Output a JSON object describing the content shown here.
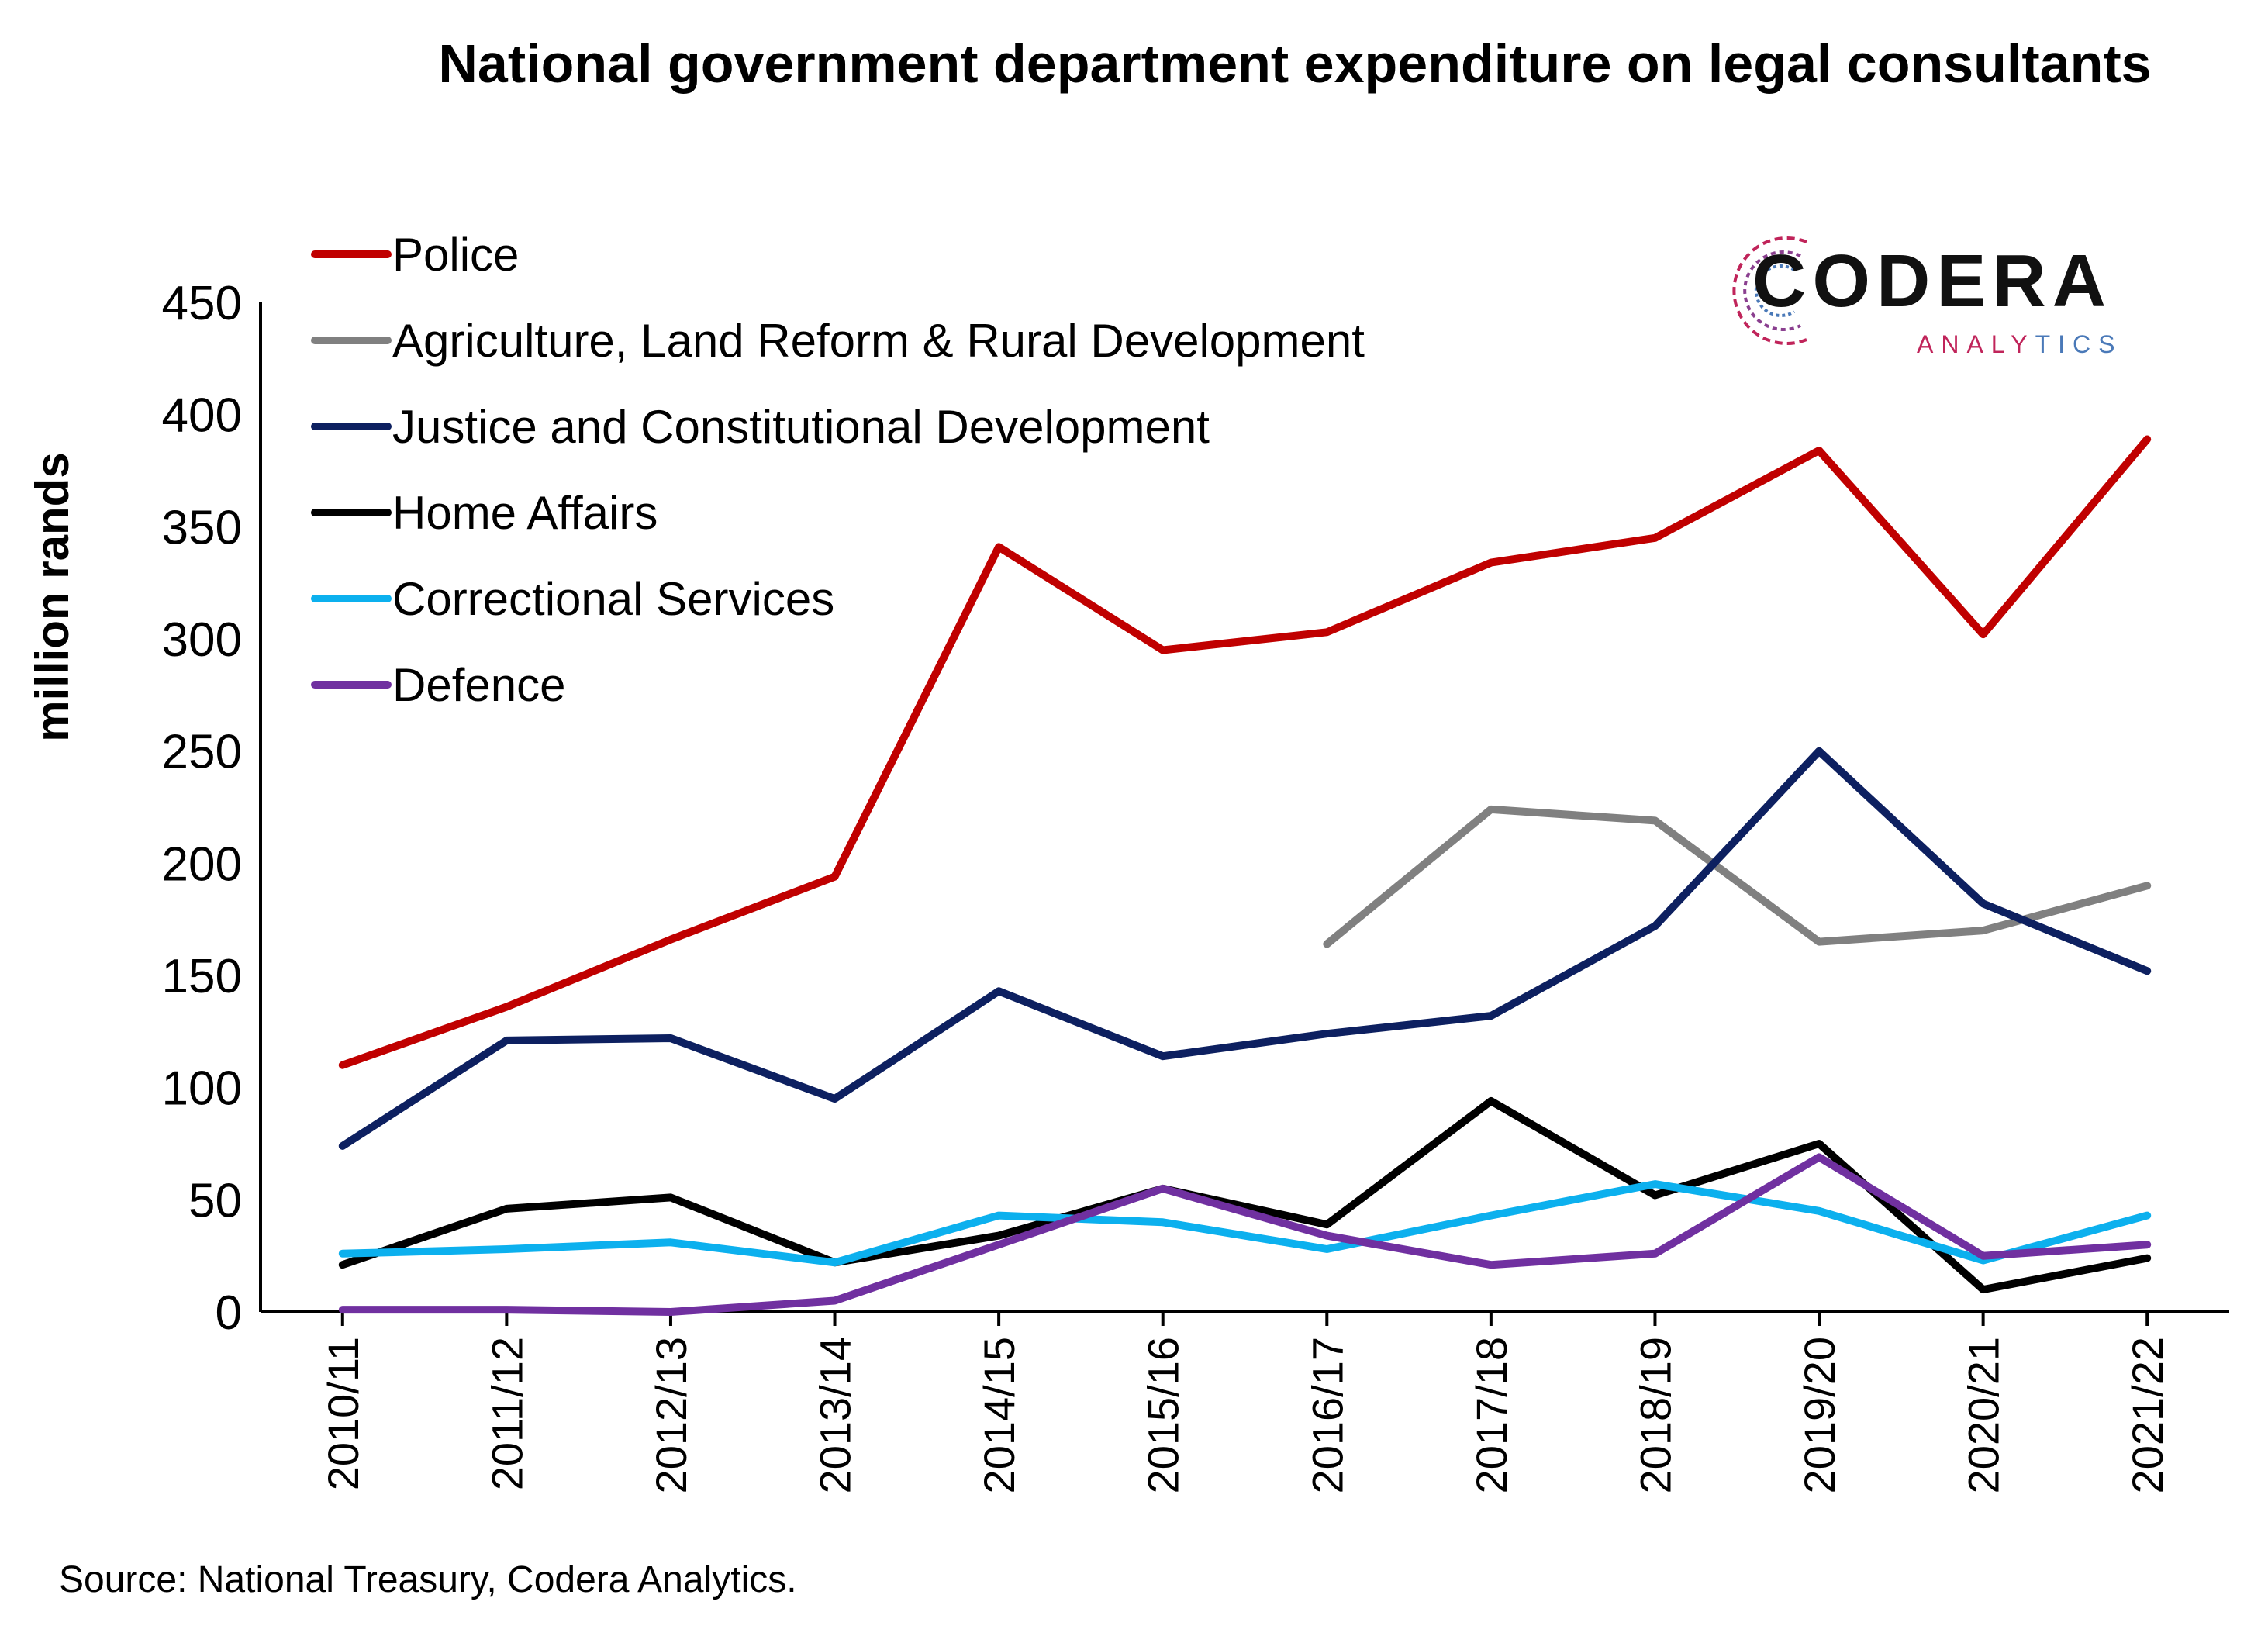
{
  "chart_data": {
    "type": "line",
    "title": "National government department expenditure on legal consultants",
    "ylabel": "million rands",
    "xlabel": "",
    "ylim": [
      0,
      450
    ],
    "yticks": [
      0,
      50,
      100,
      150,
      200,
      250,
      300,
      350,
      400,
      450
    ],
    "categories": [
      "2010/11",
      "2011/12",
      "2012/13",
      "2013/14",
      "2014/15",
      "2015/16",
      "2016/17",
      "2017/18",
      "2018/19",
      "2019/20",
      "2020/21",
      "2021/22"
    ],
    "legend_position": "top-left",
    "grid": false,
    "series": [
      {
        "name": "Police",
        "color": "#c00000",
        "values": [
          110,
          136,
          166,
          194,
          341,
          295,
          303,
          334,
          345,
          384,
          302,
          389
        ]
      },
      {
        "name": "Agriculture, Land Reform & Rural Development",
        "color": "#808080",
        "values": [
          null,
          null,
          null,
          null,
          null,
          null,
          164,
          224,
          219,
          165,
          170,
          190
        ]
      },
      {
        "name": "Justice and Constitutional Development",
        "color": "#0d2060",
        "values": [
          74,
          121,
          122,
          95,
          143,
          114,
          124,
          132,
          172,
          250,
          182,
          152
        ]
      },
      {
        "name": "Home Affairs",
        "color": "#000000",
        "values": [
          21,
          46,
          51,
          22,
          34,
          55,
          39,
          94,
          52,
          75,
          10,
          24
        ]
      },
      {
        "name": "Correctional Services",
        "color": "#0cb0ee",
        "values": [
          26,
          28,
          31,
          22,
          43,
          40,
          28,
          43,
          57,
          45,
          23,
          43
        ]
      },
      {
        "name": "Defence",
        "color": "#7030a0",
        "values": [
          1,
          1,
          0,
          5,
          30,
          55,
          34,
          21,
          26,
          69,
          25,
          30
        ]
      }
    ]
  },
  "source": "Source: National Treasury, Codera Analytics.",
  "logo": {
    "word": "CODERA",
    "sub_a": "ANALY",
    "sub_b": "TICS"
  }
}
